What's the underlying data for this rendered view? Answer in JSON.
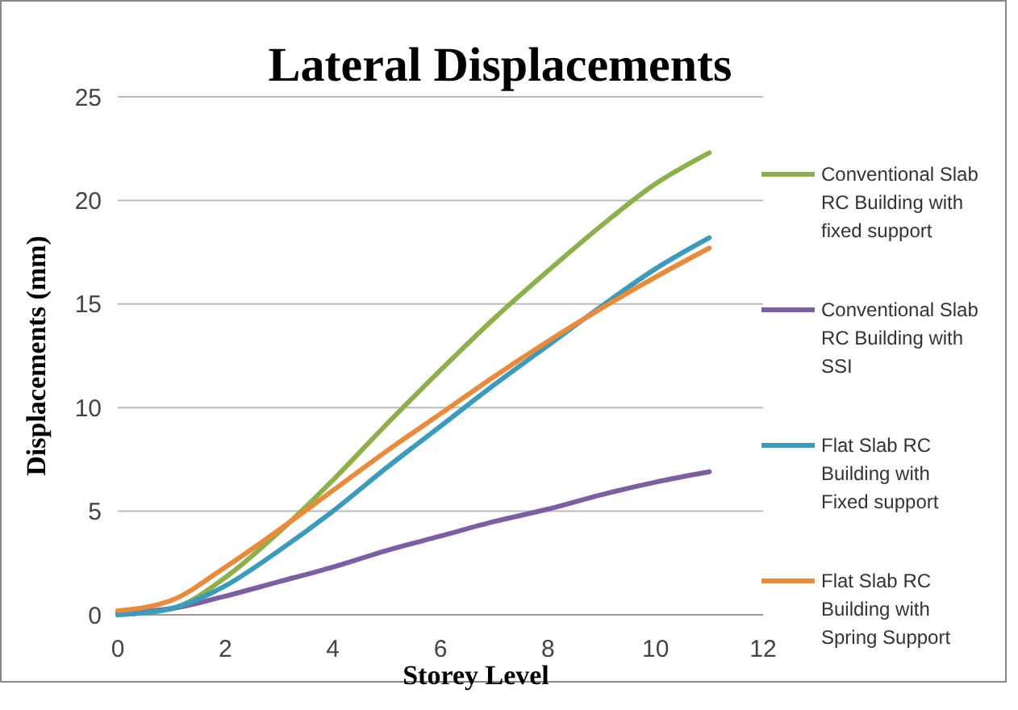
{
  "chart_data": {
    "type": "line",
    "title": "Lateral Displacements",
    "xlabel": "Storey Level",
    "ylabel": "Displacements (mm)",
    "x": [
      0,
      1,
      2,
      3,
      4,
      5,
      6,
      7,
      8,
      9,
      10,
      11
    ],
    "series": [
      {
        "name": "Conventional Slab RC Building with fixed support",
        "color": "#8cb04a",
        "values": [
          0,
          0.3,
          1.8,
          4,
          6.5,
          9.2,
          11.8,
          14.3,
          16.6,
          18.8,
          20.8,
          22.3
        ]
      },
      {
        "name": "Conventional Slab RC Building with SSI",
        "color": "#7c5fa3",
        "values": [
          0.1,
          0.3,
          0.9,
          1.6,
          2.3,
          3.1,
          3.8,
          4.5,
          5.1,
          5.8,
          6.4,
          6.9
        ]
      },
      {
        "name": "Flat Slab RC Building with Fixed support",
        "color": "#3a9bbd",
        "values": [
          0,
          0.3,
          1.4,
          3.1,
          5,
          7.1,
          9.1,
          11.1,
          13,
          14.9,
          16.7,
          18.2
        ]
      },
      {
        "name": "Flat Slab RC Building with Spring Support",
        "color": "#ec8a3c",
        "values": [
          0.2,
          0.7,
          2.3,
          4.1,
          6,
          7.9,
          9.7,
          11.5,
          13.2,
          14.8,
          16.3,
          17.7
        ]
      }
    ],
    "xlim": [
      0,
      12
    ],
    "xticks": [
      0,
      2,
      4,
      6,
      8,
      10,
      12
    ],
    "ylim": [
      0,
      25
    ],
    "yticks": [
      0,
      5,
      10,
      15,
      20,
      25
    ],
    "grid": "y",
    "legend": "right",
    "marker": "none",
    "line_style": "solid"
  }
}
